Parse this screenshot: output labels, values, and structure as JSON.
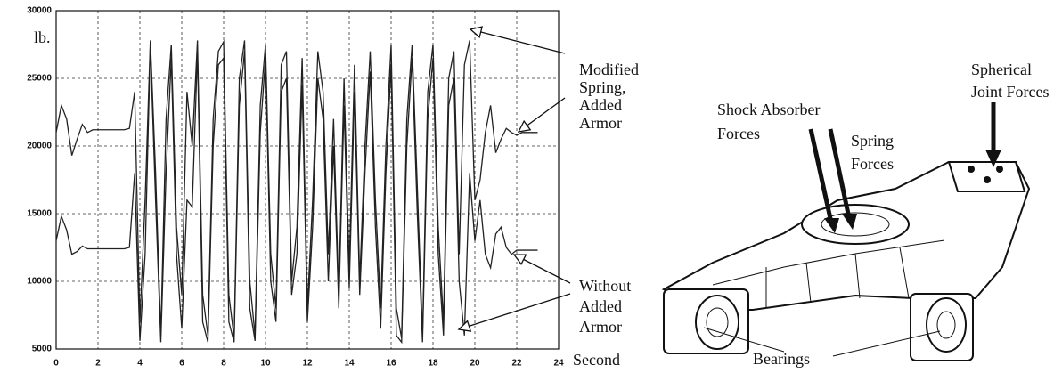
{
  "chart_data": {
    "type": "line",
    "xlim": [
      0,
      24
    ],
    "xticks": [
      0,
      2,
      4,
      6,
      8,
      10,
      12,
      14,
      16,
      18,
      20,
      22,
      24
    ],
    "ylim": [
      5000,
      30000
    ],
    "yticks": [
      5000,
      10000,
      15000,
      20000,
      25000,
      30000
    ],
    "grid": true,
    "y_axis_label": "lb.",
    "x_axis_label": "Second",
    "x": [
      0,
      0.25,
      0.5,
      0.75,
      1,
      1.25,
      1.5,
      1.75,
      2,
      2.25,
      2.5,
      2.75,
      3,
      3.25,
      3.5,
      3.75,
      4,
      4.25,
      4.5,
      4.75,
      5,
      5.25,
      5.5,
      5.75,
      6,
      6.25,
      6.5,
      6.75,
      7,
      7.25,
      7.5,
      7.75,
      8,
      8.25,
      8.5,
      8.75,
      9,
      9.25,
      9.5,
      9.75,
      10,
      10.25,
      10.5,
      10.75,
      11,
      11.25,
      11.5,
      11.75,
      12,
      12.25,
      12.5,
      12.75,
      13,
      13.25,
      13.5,
      13.75,
      14,
      14.25,
      14.5,
      14.75,
      15,
      15.25,
      15.5,
      15.75,
      16,
      16.25,
      16.5,
      16.75,
      17,
      17.25,
      17.5,
      17.75,
      18,
      18.25,
      18.5,
      18.75,
      19,
      19.25,
      19.5,
      19.75,
      20,
      20.25,
      20.5,
      20.75,
      21,
      21.25,
      21.5,
      21.75,
      22,
      22.25,
      22.5,
      22.75,
      23
    ],
    "series": [
      {
        "color": "#222222",
        "values": [
          21000,
          23000,
          22000,
          19300,
          20500,
          21600,
          21000,
          21200,
          21200,
          21200,
          21200,
          21200,
          21200,
          21200,
          21300,
          24000,
          7000,
          16000,
          27800,
          18000,
          6000,
          22000,
          27500,
          14000,
          9000,
          24000,
          20000,
          27800,
          9000,
          6000,
          22000,
          27000,
          27700,
          9000,
          5800,
          25000,
          27800,
          10000,
          6000,
          23000,
          27500,
          12000,
          8000,
          26000,
          27000,
          10000,
          14000,
          26500,
          8000,
          16000,
          27000,
          24000,
          12000,
          22000,
          9000,
          25000,
          11000,
          26000,
          10000,
          20000,
          27000,
          16000,
          8000,
          20000,
          27500,
          8000,
          5800,
          22000,
          27500,
          17000,
          6000,
          24000,
          27500,
          14000,
          7000,
          25000,
          27000,
          12000,
          26000,
          27800,
          16000,
          17500,
          21000,
          23000,
          19500,
          20500,
          21300,
          21000,
          20800,
          21000,
          21000,
          21000,
          21000
        ]
      },
      {
        "color": "#222222",
        "values": [
          13000,
          14800,
          13800,
          12000,
          12200,
          12600,
          12400,
          12400,
          12400,
          12400,
          12400,
          12400,
          12400,
          12400,
          12500,
          18000,
          5600,
          12000,
          27500,
          16000,
          5500,
          18000,
          26500,
          12000,
          6500,
          16000,
          15500,
          27000,
          7000,
          5500,
          20000,
          26000,
          26500,
          7000,
          5500,
          23000,
          27000,
          8000,
          5600,
          21000,
          26500,
          10000,
          7000,
          24000,
          25000,
          9000,
          12000,
          24500,
          7000,
          14000,
          25000,
          22000,
          10000,
          20000,
          8000,
          23000,
          9500,
          24000,
          9000,
          18000,
          25500,
          14000,
          6500,
          18000,
          26000,
          6000,
          5500,
          20000,
          26500,
          15000,
          5500,
          22000,
          26500,
          12000,
          6000,
          23000,
          25000,
          10000,
          6000,
          18000,
          13000,
          16000,
          12000,
          11000,
          13500,
          14000,
          12500,
          12000,
          12300,
          12300,
          12300,
          12300,
          12300
        ]
      }
    ],
    "annotations": [
      {
        "lines": [
          "Modified",
          "Spring,",
          "Added",
          "Armor"
        ]
      },
      {
        "lines": [
          "Without",
          "Added",
          "Armor"
        ]
      }
    ]
  },
  "diagram": {
    "labels": [
      {
        "lines": [
          "Shock Absorber",
          "Forces"
        ]
      },
      {
        "lines": [
          "Spring",
          "Forces"
        ]
      },
      {
        "lines": [
          "Spherical",
          "Joint Forces"
        ]
      },
      {
        "lines": [
          "Bearings"
        ]
      }
    ]
  }
}
